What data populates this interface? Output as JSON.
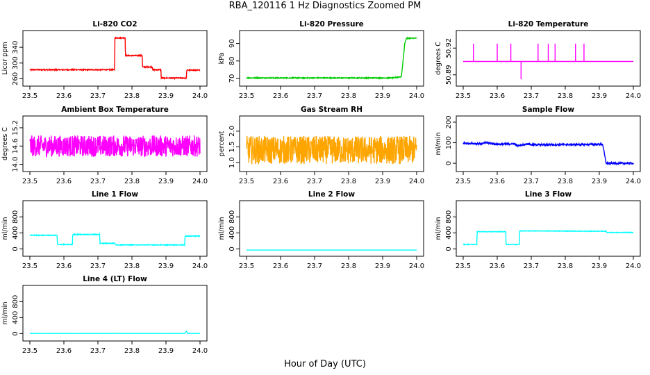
{
  "page": {
    "title": "RBA_120116  1 Hz Diagnostics Zoomed PM",
    "xlabel": "Hour of Day (UTC)"
  },
  "chart_data": [
    {
      "type": "line",
      "title": "Li-820 CO2",
      "xlabel": "",
      "ylabel": "Licor ppm",
      "xlim": [
        23.5,
        24.0
      ],
      "ylim": [
        252,
        372
      ],
      "xticks": [
        "23.5",
        "23.6",
        "23.7",
        "23.8",
        "23.9",
        "24.0"
      ],
      "yticks": [
        260,
        300,
        340
      ],
      "color": "#ff0000",
      "noise": 1.2,
      "series": [
        {
          "x": [
            23.5,
            23.749,
            23.75,
            23.78,
            23.781,
            23.83,
            23.831,
            23.86,
            23.861,
            23.885,
            23.886,
            23.96,
            23.961,
            24.0
          ],
          "y": [
            283,
            283,
            364,
            364,
            319,
            319,
            290,
            290,
            283,
            283,
            262,
            262,
            282,
            282
          ]
        }
      ]
    },
    {
      "type": "line",
      "title": "Li-820 Pressure",
      "xlabel": "",
      "ylabel": "kPa",
      "xlim": [
        23.5,
        24.0
      ],
      "ylim": [
        68,
        95
      ],
      "xticks": [
        "23.5",
        "23.6",
        "23.7",
        "23.8",
        "23.9",
        "24.0"
      ],
      "yticks": [
        70,
        80,
        90
      ],
      "color": "#00cc00",
      "noise": 0.25,
      "series": [
        {
          "x": [
            23.5,
            23.93,
            23.955,
            23.96,
            23.965,
            23.97,
            24.0
          ],
          "y": [
            70.3,
            70.3,
            71,
            80,
            90,
            93,
            93
          ]
        }
      ]
    },
    {
      "type": "line",
      "title": "Li-820 Temperature",
      "xlabel": "",
      "ylabel": "degrees C",
      "xlim": [
        23.5,
        24.0
      ],
      "ylim": [
        50.882,
        50.935
      ],
      "xticks": [
        "23.5",
        "23.6",
        "23.7",
        "23.8",
        "23.9",
        "24.0"
      ],
      "yticks": [
        50.89,
        50.92
      ],
      "ytick_labels": [
        "50.89",
        "50.92"
      ],
      "color": "#ff00ff",
      "noise": 0,
      "series": [
        {
          "x": [
            23.5,
            24.0
          ],
          "y": [
            50.905,
            50.905
          ]
        }
      ],
      "spikes": [
        {
          "x": 23.53,
          "y": 50.925
        },
        {
          "x": 23.6,
          "y": 50.925
        },
        {
          "x": 23.64,
          "y": 50.925
        },
        {
          "x": 23.67,
          "y": 50.885
        },
        {
          "x": 23.72,
          "y": 50.925
        },
        {
          "x": 23.75,
          "y": 50.925
        },
        {
          "x": 23.77,
          "y": 50.925
        },
        {
          "x": 23.83,
          "y": 50.925
        },
        {
          "x": 23.855,
          "y": 50.925
        }
      ]
    },
    {
      "type": "line",
      "title": "Ambient Box Temperature",
      "xlabel": "",
      "ylabel": "degrees C",
      "xlim": [
        23.5,
        24.0
      ],
      "ylim": [
        13.9,
        15.45
      ],
      "xticks": [
        "23.5",
        "23.6",
        "23.7",
        "23.8",
        "23.9",
        "24.0"
      ],
      "yticks": [
        14.0,
        14.6,
        15.2
      ],
      "ytick_labels": [
        "14.0",
        "14.6",
        "15.2"
      ],
      "color": "#ff00ff",
      "noise": 0.35,
      "series": [
        {
          "x": [
            23.5,
            24.0
          ],
          "y": [
            14.6,
            14.6
          ]
        }
      ]
    },
    {
      "type": "line",
      "title": "Gas Stream RH",
      "xlabel": "",
      "ylabel": "percent",
      "xlim": [
        23.5,
        24.0
      ],
      "ylim": [
        0.85,
        2.35
      ],
      "xticks": [
        "23.5",
        "23.6",
        "23.7",
        "23.8",
        "23.9",
        "24.0"
      ],
      "yticks": [
        1.0,
        1.5,
        2.0
      ],
      "ytick_labels": [
        "1.0",
        "1.5",
        "2.0"
      ],
      "color": "#ffa500",
      "noise": 0.45,
      "series": [
        {
          "x": [
            23.5,
            24.0
          ],
          "y": [
            1.4,
            1.4
          ]
        }
      ]
    },
    {
      "type": "line",
      "title": "Sample Flow",
      "xlabel": "",
      "ylabel": "ml/min",
      "xlim": [
        23.5,
        24.0
      ],
      "ylim": [
        -20,
        210
      ],
      "xticks": [
        "23.5",
        "23.6",
        "23.7",
        "23.8",
        "23.9",
        "24.0"
      ],
      "yticks": [
        0,
        100,
        200
      ],
      "color": "#0000ff",
      "noise": 4,
      "series": [
        {
          "x": [
            23.5,
            23.55,
            23.57,
            23.6,
            23.65,
            23.66,
            23.69,
            23.7,
            23.91,
            23.92,
            24.0
          ],
          "y": [
            98,
            95,
            100,
            92,
            95,
            85,
            95,
            90,
            92,
            0,
            0
          ]
        }
      ]
    },
    {
      "type": "line",
      "title": "Line 1 Flow",
      "xlabel": "",
      "ylabel": "ml/min",
      "xlim": [
        23.5,
        24.0
      ],
      "ylim": [
        -80,
        1100
      ],
      "xticks": [
        "23.5",
        "23.6",
        "23.7",
        "23.8",
        "23.9",
        "24.0"
      ],
      "yticks": [
        0,
        400,
        800
      ],
      "color": "#00ffff",
      "noise": 8,
      "series": [
        {
          "x": [
            23.5,
            23.58,
            23.581,
            23.625,
            23.626,
            23.705,
            23.706,
            23.75,
            23.751,
            23.955,
            23.956,
            24.0
          ],
          "y": [
            340,
            340,
            110,
            110,
            360,
            360,
            140,
            140,
            100,
            100,
            320,
            320
          ]
        }
      ]
    },
    {
      "type": "line",
      "title": "Line 2 Flow",
      "xlabel": "",
      "ylabel": "ml/min",
      "xlim": [
        23.5,
        24.0
      ],
      "ylim": [
        -80,
        1100
      ],
      "xticks": [
        "23.5",
        "23.6",
        "23.7",
        "23.8",
        "23.9",
        "24.0"
      ],
      "yticks": [
        0,
        400,
        800
      ],
      "color": "#00ffff",
      "noise": 0,
      "series": [
        {
          "x": [
            23.5,
            24.0
          ],
          "y": [
            -30,
            -30
          ]
        }
      ]
    },
    {
      "type": "line",
      "title": "Line 3 Flow",
      "xlabel": "",
      "ylabel": "ml/min",
      "xlim": [
        23.5,
        24.0
      ],
      "ylim": [
        -80,
        1100
      ],
      "xticks": [
        "23.5",
        "23.6",
        "23.7",
        "23.8",
        "23.9",
        "24.0"
      ],
      "yticks": [
        0,
        400,
        800
      ],
      "color": "#00ffff",
      "noise": 6,
      "series": [
        {
          "x": [
            23.5,
            23.54,
            23.541,
            23.625,
            23.626,
            23.665,
            23.666,
            23.92,
            23.921,
            24.0
          ],
          "y": [
            110,
            110,
            430,
            430,
            110,
            110,
            450,
            440,
            410,
            410
          ]
        }
      ]
    },
    {
      "type": "line",
      "title": "Line 4 (LT) Flow",
      "xlabel": "",
      "ylabel": "ml/min",
      "xlim": [
        23.5,
        24.0
      ],
      "ylim": [
        -80,
        1100
      ],
      "xticks": [
        "23.5",
        "23.6",
        "23.7",
        "23.8",
        "23.9",
        "24.0"
      ],
      "yticks": [
        0,
        400,
        800
      ],
      "color": "#00ffff",
      "noise": 2,
      "series": [
        {
          "x": [
            23.5,
            23.955,
            23.96,
            23.965,
            24.0
          ],
          "y": [
            5,
            5,
            60,
            5,
            5
          ]
        }
      ]
    }
  ]
}
